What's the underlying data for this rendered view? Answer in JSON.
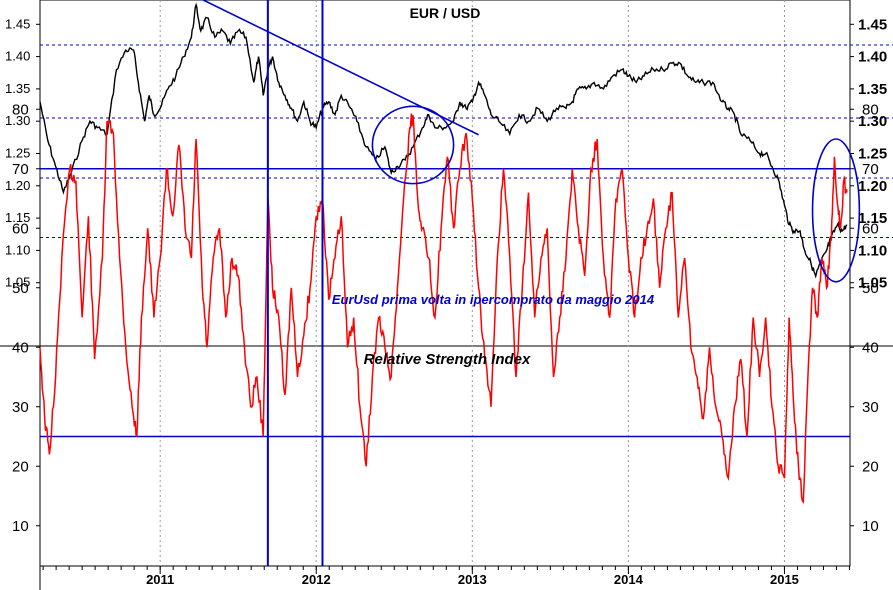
{
  "chart_data": [
    {
      "type": "line",
      "title": "EUR / USD",
      "annotation": "EurUsd prima volta in ipercomprato da maggio 2014",
      "y_ticks": [
        "1.05",
        "1.10",
        "1.15",
        "1.20",
        "1.25",
        "1.30",
        "1.35",
        "1.40",
        "1.45"
      ],
      "ylim": [
        1.0,
        1.5
      ],
      "x_ticks": [
        "2011",
        "2012",
        "2013",
        "2014",
        "2015"
      ],
      "x_tick_values": [
        2011.0,
        2012.0,
        2013.0,
        2014.0,
        2015.0
      ],
      "xlim": [
        2010.23,
        2015.42
      ],
      "reference_lines": [
        1.418,
        1.305,
        1.212,
        1.12
      ],
      "trendline": {
        "x": [
          2011.23,
          2013.04
        ],
        "y": [
          1.493,
          1.279
        ]
      },
      "vertical_markers": [
        2011.69,
        2012.04
      ],
      "series": [
        {
          "values": [
            [
              2010.23,
              1.33
            ],
            [
              2010.28,
              1.27
            ],
            [
              2010.33,
              1.23
            ],
            [
              2010.38,
              1.19
            ],
            [
              2010.43,
              1.22
            ],
            [
              2010.5,
              1.27
            ],
            [
              2010.55,
              1.3
            ],
            [
              2010.6,
              1.29
            ],
            [
              2010.66,
              1.28
            ],
            [
              2010.72,
              1.38
            ],
            [
              2010.78,
              1.41
            ],
            [
              2010.83,
              1.41
            ],
            [
              2010.86,
              1.36
            ],
            [
              2010.9,
              1.3
            ],
            [
              2010.93,
              1.34
            ],
            [
              2010.96,
              1.31
            ],
            [
              2011.0,
              1.32
            ],
            [
              2011.05,
              1.35
            ],
            [
              2011.1,
              1.37
            ],
            [
              2011.15,
              1.4
            ],
            [
              2011.2,
              1.43
            ],
            [
              2011.23,
              1.48
            ],
            [
              2011.26,
              1.44
            ],
            [
              2011.3,
              1.46
            ],
            [
              2011.35,
              1.43
            ],
            [
              2011.4,
              1.44
            ],
            [
              2011.45,
              1.42
            ],
            [
              2011.5,
              1.44
            ],
            [
              2011.55,
              1.43
            ],
            [
              2011.6,
              1.36
            ],
            [
              2011.63,
              1.4
            ],
            [
              2011.66,
              1.34
            ],
            [
              2011.69,
              1.38
            ],
            [
              2011.72,
              1.4
            ],
            [
              2011.76,
              1.36
            ],
            [
              2011.8,
              1.34
            ],
            [
              2011.84,
              1.32
            ],
            [
              2011.88,
              1.3
            ],
            [
              2011.92,
              1.33
            ],
            [
              2011.96,
              1.3
            ],
            [
              2012.0,
              1.29
            ],
            [
              2012.04,
              1.32
            ],
            [
              2012.08,
              1.33
            ],
            [
              2012.12,
              1.31
            ],
            [
              2012.16,
              1.34
            ],
            [
              2012.22,
              1.32
            ],
            [
              2012.26,
              1.3
            ],
            [
              2012.32,
              1.26
            ],
            [
              2012.38,
              1.24
            ],
            [
              2012.44,
              1.26
            ],
            [
              2012.48,
              1.22
            ],
            [
              2012.52,
              1.23
            ],
            [
              2012.57,
              1.24
            ],
            [
              2012.62,
              1.26
            ],
            [
              2012.68,
              1.29
            ],
            [
              2012.72,
              1.31
            ],
            [
              2012.76,
              1.29
            ],
            [
              2012.82,
              1.29
            ],
            [
              2012.88,
              1.3
            ],
            [
              2012.92,
              1.33
            ],
            [
              2012.96,
              1.32
            ],
            [
              2013.0,
              1.33
            ],
            [
              2013.04,
              1.36
            ],
            [
              2013.08,
              1.34
            ],
            [
              2013.12,
              1.31
            ],
            [
              2013.17,
              1.3
            ],
            [
              2013.24,
              1.28
            ],
            [
              2013.3,
              1.31
            ],
            [
              2013.36,
              1.3
            ],
            [
              2013.42,
              1.32
            ],
            [
              2013.48,
              1.3
            ],
            [
              2013.54,
              1.32
            ],
            [
              2013.6,
              1.32
            ],
            [
              2013.64,
              1.33
            ],
            [
              2013.68,
              1.35
            ],
            [
              2013.73,
              1.35
            ],
            [
              2013.78,
              1.36
            ],
            [
              2013.84,
              1.35
            ],
            [
              2013.9,
              1.37
            ],
            [
              2013.96,
              1.38
            ],
            [
              2014.0,
              1.37
            ],
            [
              2014.05,
              1.36
            ],
            [
              2014.1,
              1.37
            ],
            [
              2014.16,
              1.38
            ],
            [
              2014.22,
              1.38
            ],
            [
              2014.28,
              1.39
            ],
            [
              2014.33,
              1.39
            ],
            [
              2014.38,
              1.37
            ],
            [
              2014.43,
              1.36
            ],
            [
              2014.48,
              1.36
            ],
            [
              2014.54,
              1.36
            ],
            [
              2014.6,
              1.33
            ],
            [
              2014.64,
              1.32
            ],
            [
              2014.68,
              1.31
            ],
            [
              2014.72,
              1.28
            ],
            [
              2014.78,
              1.27
            ],
            [
              2014.84,
              1.25
            ],
            [
              2014.88,
              1.25
            ],
            [
              2014.92,
              1.23
            ],
            [
              2014.96,
              1.21
            ],
            [
              2015.0,
              1.17
            ],
            [
              2015.03,
              1.14
            ],
            [
              2015.06,
              1.13
            ],
            [
              2015.1,
              1.13
            ],
            [
              2015.13,
              1.1
            ],
            [
              2015.17,
              1.08
            ],
            [
              2015.2,
              1.06
            ],
            [
              2015.23,
              1.08
            ],
            [
              2015.27,
              1.1
            ],
            [
              2015.3,
              1.12
            ],
            [
              2015.34,
              1.14
            ],
            [
              2015.37,
              1.13
            ],
            [
              2015.4,
              1.14
            ]
          ]
        }
      ]
    },
    {
      "type": "line",
      "title": "Relative Strength Index",
      "y_ticks": [
        "10",
        "20",
        "30",
        "40",
        "50",
        "60",
        "70",
        "80"
      ],
      "ylim": [
        5,
        85
      ],
      "x_ticks": [
        "2011",
        "2012",
        "2013",
        "2014",
        "2015"
      ],
      "xlim": [
        2010.23,
        2015.42
      ],
      "reference_lines": [
        70,
        25
      ],
      "vertical_markers": [
        2011.69,
        2012.04
      ],
      "highlights": [
        {
          "center": [
            2012.62,
            74
          ],
          "radius_x": 0.26,
          "radius_y": 6.5
        },
        {
          "center": [
            2015.33,
            63
          ],
          "radius_x": 0.15,
          "radius_y": 12
        }
      ],
      "series": [
        {
          "values": [
            [
              2010.23,
              40
            ],
            [
              2010.26,
              28
            ],
            [
              2010.29,
              22
            ],
            [
              2010.33,
              35
            ],
            [
              2010.37,
              55
            ],
            [
              2010.42,
              70
            ],
            [
              2010.46,
              68
            ],
            [
              2010.5,
              45
            ],
            [
              2010.54,
              62
            ],
            [
              2010.58,
              38
            ],
            [
              2010.63,
              55
            ],
            [
              2010.66,
              78
            ],
            [
              2010.7,
              76
            ],
            [
              2010.74,
              55
            ],
            [
              2010.78,
              40
            ],
            [
              2010.82,
              30
            ],
            [
              2010.85,
              25
            ],
            [
              2010.88,
              45
            ],
            [
              2010.92,
              60
            ],
            [
              2010.96,
              45
            ],
            [
              2011.0,
              55
            ],
            [
              2011.04,
              70
            ],
            [
              2011.08,
              62
            ],
            [
              2011.12,
              74
            ],
            [
              2011.16,
              60
            ],
            [
              2011.2,
              55
            ],
            [
              2011.23,
              75
            ],
            [
              2011.27,
              50
            ],
            [
              2011.3,
              40
            ],
            [
              2011.34,
              55
            ],
            [
              2011.38,
              60
            ],
            [
              2011.42,
              45
            ],
            [
              2011.46,
              55
            ],
            [
              2011.5,
              52
            ],
            [
              2011.54,
              40
            ],
            [
              2011.58,
              30
            ],
            [
              2011.62,
              35
            ],
            [
              2011.66,
              25
            ],
            [
              2011.69,
              65
            ],
            [
              2011.72,
              50
            ],
            [
              2011.76,
              45
            ],
            [
              2011.8,
              32
            ],
            [
              2011.84,
              50
            ],
            [
              2011.88,
              35
            ],
            [
              2011.92,
              42
            ],
            [
              2011.96,
              50
            ],
            [
              2012.0,
              62
            ],
            [
              2012.04,
              65
            ],
            [
              2012.08,
              48
            ],
            [
              2012.12,
              55
            ],
            [
              2012.16,
              62
            ],
            [
              2012.2,
              40
            ],
            [
              2012.24,
              45
            ],
            [
              2012.28,
              30
            ],
            [
              2012.32,
              20
            ],
            [
              2012.36,
              35
            ],
            [
              2012.4,
              45
            ],
            [
              2012.44,
              40
            ],
            [
              2012.48,
              35
            ],
            [
              2012.52,
              50
            ],
            [
              2012.56,
              65
            ],
            [
              2012.6,
              77
            ],
            [
              2012.62,
              79
            ],
            [
              2012.65,
              65
            ],
            [
              2012.68,
              60
            ],
            [
              2012.72,
              55
            ],
            [
              2012.76,
              45
            ],
            [
              2012.8,
              60
            ],
            [
              2012.84,
              72
            ],
            [
              2012.88,
              60
            ],
            [
              2012.92,
              70
            ],
            [
              2012.96,
              76
            ],
            [
              2013.0,
              65
            ],
            [
              2013.04,
              50
            ],
            [
              2013.08,
              38
            ],
            [
              2013.12,
              30
            ],
            [
              2013.16,
              55
            ],
            [
              2013.2,
              70
            ],
            [
              2013.24,
              55
            ],
            [
              2013.28,
              35
            ],
            [
              2013.32,
              50
            ],
            [
              2013.36,
              66
            ],
            [
              2013.4,
              45
            ],
            [
              2013.44,
              55
            ],
            [
              2013.48,
              60
            ],
            [
              2013.52,
              35
            ],
            [
              2013.56,
              45
            ],
            [
              2013.6,
              55
            ],
            [
              2013.64,
              70
            ],
            [
              2013.68,
              60
            ],
            [
              2013.72,
              52
            ],
            [
              2013.76,
              70
            ],
            [
              2013.8,
              75
            ],
            [
              2013.84,
              55
            ],
            [
              2013.88,
              45
            ],
            [
              2013.92,
              65
            ],
            [
              2013.96,
              70
            ],
            [
              2014.0,
              55
            ],
            [
              2014.04,
              45
            ],
            [
              2014.08,
              55
            ],
            [
              2014.12,
              60
            ],
            [
              2014.16,
              65
            ],
            [
              2014.2,
              50
            ],
            [
              2014.24,
              60
            ],
            [
              2014.28,
              66
            ],
            [
              2014.32,
              45
            ],
            [
              2014.36,
              55
            ],
            [
              2014.4,
              40
            ],
            [
              2014.44,
              35
            ],
            [
              2014.48,
              28
            ],
            [
              2014.52,
              40
            ],
            [
              2014.56,
              30
            ],
            [
              2014.6,
              25
            ],
            [
              2014.64,
              18
            ],
            [
              2014.68,
              30
            ],
            [
              2014.72,
              38
            ],
            [
              2014.76,
              25
            ],
            [
              2014.8,
              45
            ],
            [
              2014.84,
              35
            ],
            [
              2014.88,
              45
            ],
            [
              2014.92,
              30
            ],
            [
              2014.96,
              20
            ],
            [
              2015.0,
              18
            ],
            [
              2015.03,
              45
            ],
            [
              2015.06,
              30
            ],
            [
              2015.09,
              20
            ],
            [
              2015.12,
              14
            ],
            [
              2015.15,
              35
            ],
            [
              2015.18,
              50
            ],
            [
              2015.21,
              45
            ],
            [
              2015.24,
              55
            ],
            [
              2015.27,
              50
            ],
            [
              2015.3,
              58
            ],
            [
              2015.32,
              72
            ],
            [
              2015.34,
              64
            ],
            [
              2015.36,
              60
            ],
            [
              2015.38,
              68
            ],
            [
              2015.4,
              66
            ]
          ]
        }
      ]
    }
  ],
  "colors": {
    "price_line": "#000000",
    "rsi_line": "#ff0000",
    "markers": "#0000cc",
    "ref_dashed": "#0000cc",
    "grid": "#999999"
  }
}
